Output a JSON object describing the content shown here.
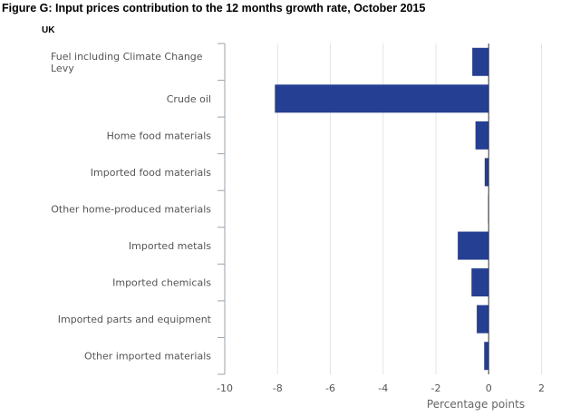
{
  "title": "Figure G: Input prices contribution to the 12 months growth rate, October 2015",
  "subtitle": "UK",
  "colors": {
    "bar": "#253f93",
    "grid": "#e1e4e8",
    "axis": "#9aa3ab",
    "zero_line": "#333333"
  },
  "chart_data": {
    "type": "bar",
    "orientation": "horizontal",
    "categories": [
      [
        "Fuel including Climate Change",
        "Levy"
      ],
      [
        "Crude oil"
      ],
      [
        "Home food materials"
      ],
      [
        "Imported food materials"
      ],
      [
        "Other home-produced materials"
      ],
      [
        "Imported metals"
      ],
      [
        "Imported chemicals"
      ],
      [
        "Imported parts and equipment"
      ],
      [
        "Other imported materials"
      ]
    ],
    "values": [
      -0.62,
      -8.1,
      -0.5,
      -0.15,
      -0.02,
      -1.17,
      -0.65,
      -0.45,
      -0.17
    ],
    "xlabel": "Percentage points",
    "xlim": [
      -10,
      2.5
    ],
    "xticks": [
      -10,
      -8,
      -6,
      -4,
      -2,
      0,
      2
    ],
    "grid": true
  }
}
